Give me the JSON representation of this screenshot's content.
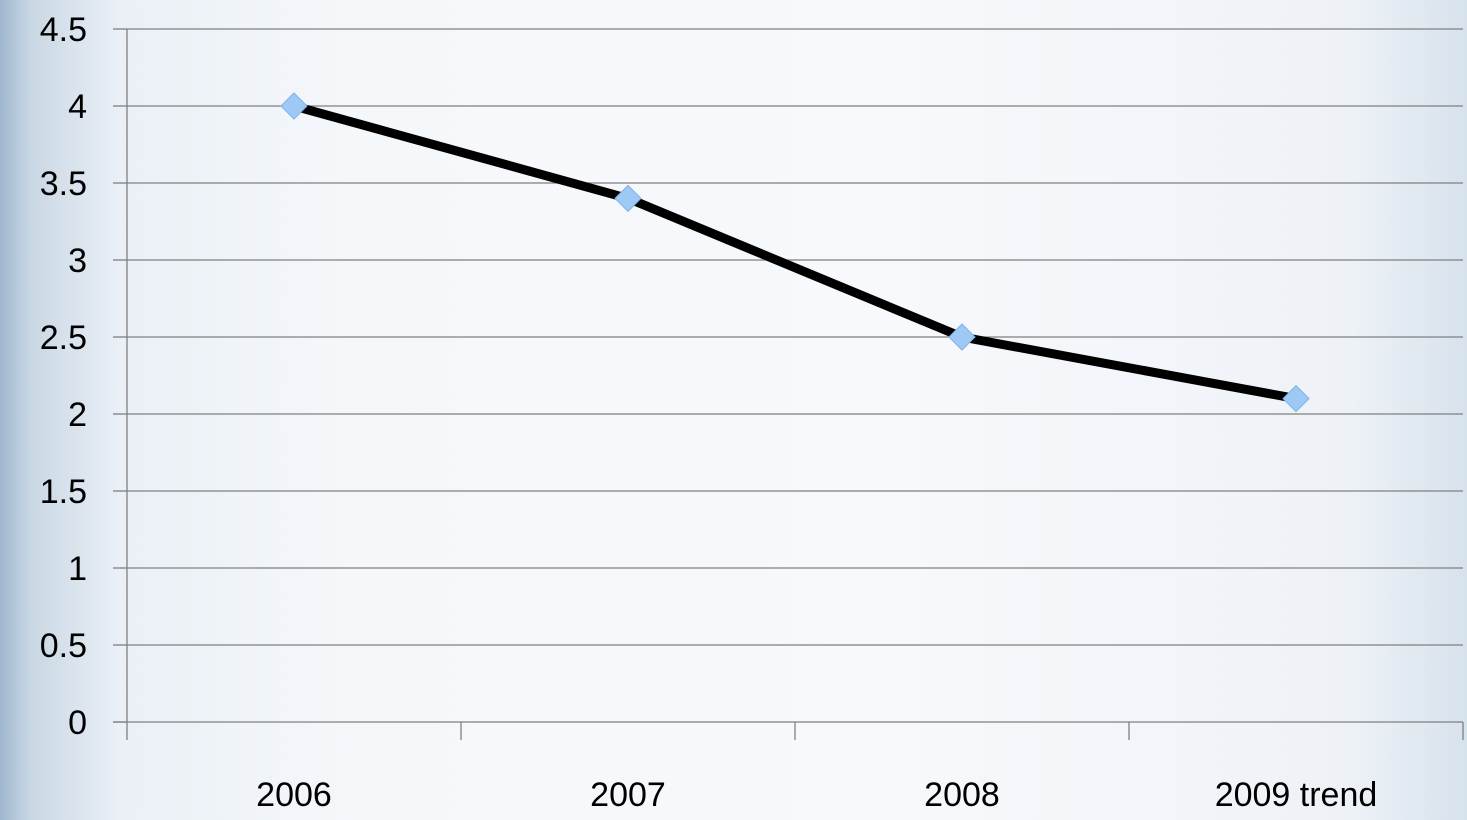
{
  "chart_data": {
    "type": "line",
    "categories": [
      "2006",
      "2007",
      "2008",
      "2009 trend"
    ],
    "series": [
      {
        "values": [
          4.0,
          3.4,
          2.5,
          2.1
        ]
      }
    ],
    "ylim": [
      0,
      4.5
    ],
    "yticks": [
      "0",
      "0.5",
      "1",
      "1.5",
      "2",
      "2.5",
      "3",
      "3.5",
      "4",
      "4.5"
    ],
    "grid": true,
    "legend": "none",
    "colors": {
      "line": "#000000",
      "marker": "#9ec9f5",
      "gridline": "#7f7f7f",
      "axis": "#7f7f7f"
    }
  }
}
